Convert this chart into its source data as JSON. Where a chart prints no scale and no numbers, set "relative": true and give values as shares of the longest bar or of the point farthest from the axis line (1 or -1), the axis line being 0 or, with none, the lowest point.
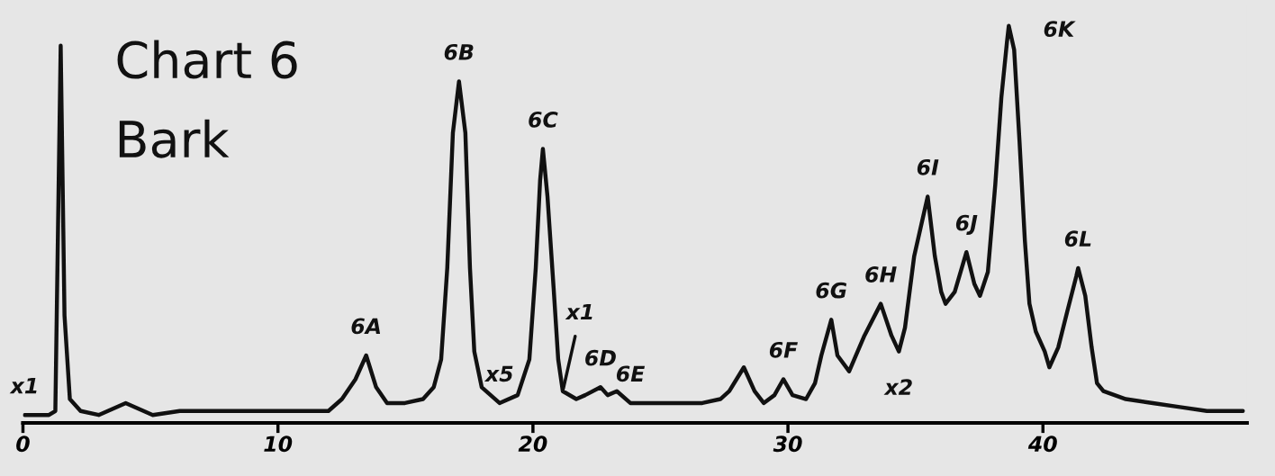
{
  "chart_data": {
    "type": "line",
    "title": "Chart 6",
    "subtitle": "Bark",
    "relative": true,
    "color": "#111111",
    "x": [
      0.07,
      1.02,
      1.27,
      1.48,
      1.63,
      1.84,
      2.26,
      2.97,
      4.03,
      5.09,
      6.15,
      7.56,
      8.98,
      10.04,
      11.1,
      11.98,
      12.51,
      13.04,
      13.46,
      13.85,
      14.28,
      14.98,
      15.69,
      16.11,
      16.4,
      16.64,
      16.86,
      17.1,
      17.35,
      17.53,
      17.7,
      17.99,
      18.69,
      19.4,
      19.86,
      20.11,
      20.28,
      20.39,
      20.57,
      20.81,
      20.99,
      21.17,
      21.7,
      22.05,
      22.65,
      22.93,
      23.29,
      23.82,
      25.23,
      26.64,
      27.35,
      27.7,
      28.27,
      28.69,
      29.05,
      29.47,
      29.82,
      30.18,
      30.71,
      31.06,
      31.31,
      31.7,
      31.94,
      32.4,
      33.0,
      33.64,
      34.06,
      34.35,
      34.59,
      34.95,
      35.48,
      35.76,
      36.01,
      36.18,
      36.54,
      37.0,
      37.31,
      37.53,
      37.84,
      38.13,
      38.37,
      38.59,
      38.66,
      38.87,
      39.08,
      39.29,
      39.47,
      39.72,
      40.07,
      40.25,
      40.6,
      40.95,
      41.31,
      41.38,
      41.66,
      41.91,
      42.12,
      42.37,
      43.25,
      44.31,
      45.37,
      46.43,
      47.84
    ],
    "values": [
      0.02,
      0.02,
      0.03,
      0.95,
      0.27,
      0.06,
      0.03,
      0.02,
      0.05,
      0.02,
      0.03,
      0.03,
      0.03,
      0.03,
      0.03,
      0.03,
      0.06,
      0.11,
      0.17,
      0.09,
      0.05,
      0.05,
      0.06,
      0.09,
      0.16,
      0.39,
      0.73,
      0.86,
      0.73,
      0.39,
      0.18,
      0.09,
      0.05,
      0.07,
      0.16,
      0.39,
      0.61,
      0.69,
      0.57,
      0.34,
      0.16,
      0.08,
      0.06,
      0.07,
      0.09,
      0.07,
      0.08,
      0.05,
      0.05,
      0.05,
      0.06,
      0.08,
      0.14,
      0.08,
      0.05,
      0.07,
      0.11,
      0.07,
      0.06,
      0.1,
      0.17,
      0.26,
      0.17,
      0.13,
      0.22,
      0.3,
      0.22,
      0.18,
      0.24,
      0.42,
      0.57,
      0.42,
      0.33,
      0.3,
      0.33,
      0.43,
      0.35,
      0.32,
      0.38,
      0.6,
      0.82,
      0.96,
      1.0,
      0.94,
      0.71,
      0.46,
      0.3,
      0.23,
      0.18,
      0.14,
      0.19,
      0.28,
      0.37,
      0.39,
      0.32,
      0.19,
      0.1,
      0.08,
      0.06,
      0.05,
      0.04,
      0.03,
      0.03
    ],
    "xlim": [
      0,
      48
    ],
    "xticks": [
      0,
      10,
      20,
      30,
      40
    ],
    "grid": false,
    "legend": false,
    "marker": "none",
    "line_style": "solid",
    "annotations": [
      {
        "text": "6A",
        "x": 13.46,
        "y": 0.17
      },
      {
        "text": "6B",
        "x": 17.1,
        "y": 0.86
      },
      {
        "text": "6C",
        "x": 20.39,
        "y": 0.69
      },
      {
        "text": "6D",
        "x": 22.65,
        "y": 0.09
      },
      {
        "text": "6E",
        "x": 23.82,
        "y": 0.05
      },
      {
        "text": "6F",
        "x": 29.82,
        "y": 0.11
      },
      {
        "text": "6G",
        "x": 31.7,
        "y": 0.26
      },
      {
        "text": "6H",
        "x": 33.64,
        "y": 0.3
      },
      {
        "text": "6I",
        "x": 35.48,
        "y": 0.57
      },
      {
        "text": "6J",
        "x": 37.0,
        "y": 0.43
      },
      {
        "text": "6K",
        "x": 38.66,
        "y": 1.0
      },
      {
        "text": "6L",
        "x": 41.38,
        "y": 0.39
      },
      {
        "text": "x1",
        "x": 0.07,
        "y": 0.02
      },
      {
        "text": "x5",
        "x": 18.69,
        "y": 0.05
      },
      {
        "text": "x1",
        "x": 21.17,
        "y": 0.08
      },
      {
        "text": "x2",
        "x": 34.35,
        "y": 0.18
      }
    ]
  }
}
